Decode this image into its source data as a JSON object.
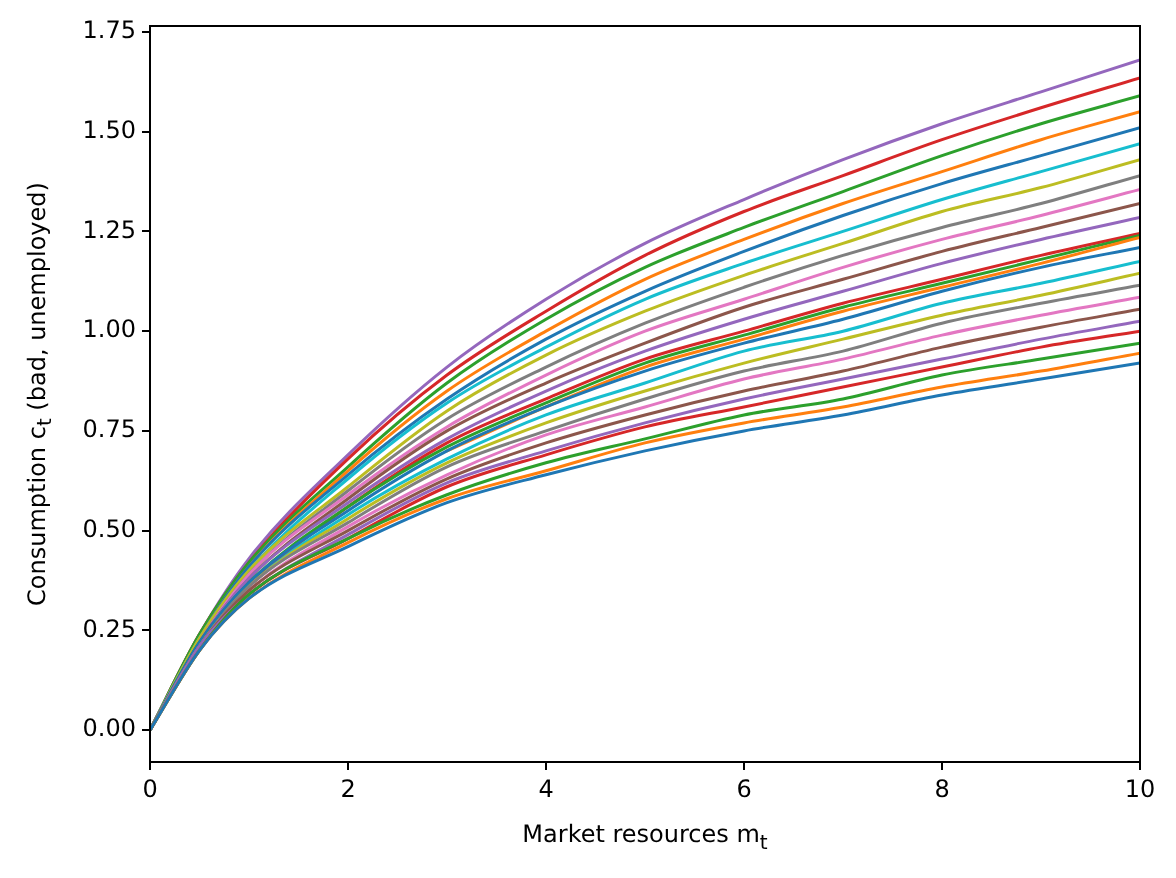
{
  "chart_data": {
    "type": "line",
    "xlabel": "Market resources m$_{t}$",
    "ylabel": "Consumption c$_{t}$ (bad, unemployed)",
    "x": [
      0,
      0.5,
      1,
      2,
      3,
      4,
      5,
      6,
      7,
      8,
      9,
      10
    ],
    "xlim": [
      0,
      10
    ],
    "ylim": [
      -0.08,
      1.765
    ],
    "xticks": [
      0,
      2,
      4,
      6,
      8,
      10
    ],
    "yticks": [
      {
        "value": 0,
        "label": "0.00"
      },
      {
        "value": 0.25,
        "label": "0.25"
      },
      {
        "value": 0.5,
        "label": "0.50"
      },
      {
        "value": 0.75,
        "label": "0.75"
      },
      {
        "value": 1,
        "label": "1.00"
      },
      {
        "value": 1.25,
        "label": "1.25"
      },
      {
        "value": 1.5,
        "label": "1.50"
      },
      {
        "value": 1.75,
        "label": "1.75"
      }
    ],
    "grid": false,
    "legend": false,
    "marker": "none",
    "line_style": "solid",
    "series": [
      {
        "color": "#1f77b4",
        "values": [
          0,
          0.2,
          0.33,
          0.46,
          0.57,
          0.64,
          0.7,
          0.75,
          0.79,
          0.84,
          0.88,
          0.92
        ]
      },
      {
        "color": "#ff7f0e",
        "values": [
          0,
          0.2,
          0.33,
          0.47,
          0.58,
          0.65,
          0.72,
          0.77,
          0.81,
          0.86,
          0.9,
          0.945
        ]
      },
      {
        "color": "#2ca02c",
        "values": [
          0,
          0.2,
          0.34,
          0.48,
          0.59,
          0.67,
          0.73,
          0.79,
          0.83,
          0.89,
          0.93,
          0.97
        ]
      },
      {
        "color": "#d62728",
        "values": [
          0,
          0.2,
          0.34,
          0.48,
          0.61,
          0.69,
          0.76,
          0.81,
          0.86,
          0.91,
          0.96,
          1.0
        ]
      },
      {
        "color": "#9467bd",
        "values": [
          0,
          0.21,
          0.34,
          0.49,
          0.62,
          0.7,
          0.77,
          0.83,
          0.88,
          0.93,
          0.98,
          1.025
        ]
      },
      {
        "color": "#8c564b",
        "values": [
          0,
          0.21,
          0.35,
          0.5,
          0.63,
          0.72,
          0.79,
          0.85,
          0.9,
          0.96,
          1.01,
          1.055
        ]
      },
      {
        "color": "#e377c2",
        "values": [
          0,
          0.21,
          0.35,
          0.51,
          0.64,
          0.74,
          0.81,
          0.88,
          0.93,
          0.99,
          1.04,
          1.085
        ]
      },
      {
        "color": "#7f7f7f",
        "values": [
          0,
          0.21,
          0.36,
          0.52,
          0.66,
          0.75,
          0.83,
          0.9,
          0.95,
          1.02,
          1.07,
          1.115
        ]
      },
      {
        "color": "#bcbd22",
        "values": [
          0,
          0.21,
          0.36,
          0.53,
          0.67,
          0.77,
          0.85,
          0.92,
          0.98,
          1.04,
          1.09,
          1.145
        ]
      },
      {
        "color": "#17becf",
        "values": [
          0,
          0.21,
          0.36,
          0.54,
          0.68,
          0.79,
          0.87,
          0.95,
          1.0,
          1.07,
          1.12,
          1.175
        ]
      },
      {
        "color": "#1f77b4",
        "values": [
          0,
          0.22,
          0.37,
          0.55,
          0.7,
          0.81,
          0.9,
          0.97,
          1.03,
          1.1,
          1.16,
          1.21
        ]
      },
      {
        "color": "#ff7f0e",
        "values": [
          null,
          null,
          null,
          null,
          0.7,
          0.81,
          0.91,
          0.98,
          1.05,
          1.11,
          1.17,
          1.235
        ]
      },
      {
        "color": "#2ca02c",
        "values": [
          0,
          0.22,
          0.37,
          0.56,
          0.71,
          0.82,
          0.92,
          0.99,
          1.06,
          1.12,
          1.18,
          1.24
        ]
      },
      {
        "color": "#d62728",
        "values": [
          null,
          null,
          0.37,
          0.56,
          0.72,
          0.83,
          0.93,
          1.0,
          1.07,
          1.13,
          1.19,
          1.245
        ]
      },
      {
        "color": "#9467bd",
        "values": [
          0,
          0.22,
          0.38,
          0.57,
          0.73,
          0.85,
          0.95,
          1.03,
          1.1,
          1.17,
          1.23,
          1.285
        ]
      },
      {
        "color": "#8c564b",
        "values": [
          0,
          0.22,
          0.38,
          0.58,
          0.75,
          0.87,
          0.97,
          1.06,
          1.13,
          1.2,
          1.26,
          1.32
        ]
      },
      {
        "color": "#e377c2",
        "values": [
          0,
          0.22,
          0.39,
          0.59,
          0.76,
          0.89,
          1.0,
          1.08,
          1.16,
          1.23,
          1.29,
          1.355
        ]
      },
      {
        "color": "#7f7f7f",
        "values": [
          0,
          0.22,
          0.39,
          0.6,
          0.78,
          0.91,
          1.02,
          1.11,
          1.19,
          1.26,
          1.32,
          1.39
        ]
      },
      {
        "color": "#bcbd22",
        "values": [
          0,
          0.23,
          0.4,
          0.61,
          0.8,
          0.94,
          1.05,
          1.14,
          1.22,
          1.3,
          1.36,
          1.43
        ]
      },
      {
        "color": "#17becf",
        "values": [
          0,
          0.23,
          0.4,
          0.63,
          0.82,
          0.96,
          1.08,
          1.17,
          1.25,
          1.33,
          1.4,
          1.47
        ]
      },
      {
        "color": "#1f77b4",
        "values": [
          0,
          0.23,
          0.41,
          0.64,
          0.83,
          0.98,
          1.1,
          1.2,
          1.29,
          1.37,
          1.44,
          1.51
        ]
      },
      {
        "color": "#ff7f0e",
        "values": [
          0,
          0.23,
          0.41,
          0.65,
          0.85,
          1.0,
          1.13,
          1.23,
          1.32,
          1.4,
          1.48,
          1.55
        ]
      },
      {
        "color": "#2ca02c",
        "values": [
          0,
          0.24,
          0.42,
          0.66,
          0.87,
          1.03,
          1.16,
          1.26,
          1.35,
          1.44,
          1.52,
          1.59
        ]
      },
      {
        "color": "#d62728",
        "values": [
          0,
          0.24,
          0.42,
          0.68,
          0.89,
          1.05,
          1.19,
          1.3,
          1.39,
          1.48,
          1.56,
          1.635
        ]
      },
      {
        "color": "#9467bd",
        "values": [
          0,
          0.24,
          0.43,
          0.69,
          0.91,
          1.08,
          1.22,
          1.33,
          1.43,
          1.52,
          1.6,
          1.68
        ]
      }
    ]
  }
}
